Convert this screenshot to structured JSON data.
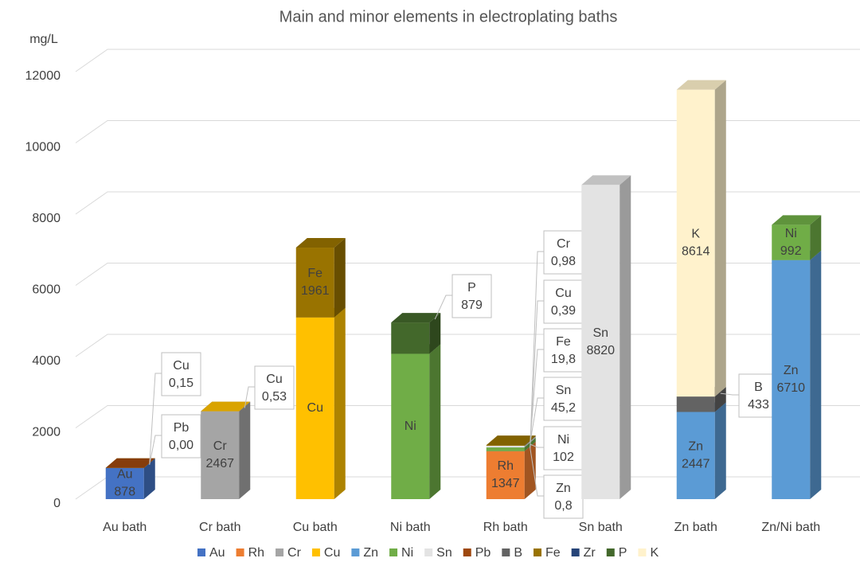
{
  "chart_data": {
    "type": "bar3d_stacked",
    "title": "Main and minor elements in electroplating baths",
    "y_label": "mg/L",
    "categories": [
      "Au bath",
      "Cr bath",
      "Cu bath",
      "Ni bath",
      "Rh bath",
      "Sn bath",
      "Zn bath",
      "Zn/Ni bath"
    ],
    "ylim": [
      0,
      12000
    ],
    "yticks": [
      0,
      2000,
      4000,
      6000,
      8000,
      10000,
      12000
    ],
    "grid": true,
    "legend": "bottom",
    "series": [
      {
        "name": "Au",
        "color": "#4472c4",
        "values": [
          878,
          null,
          null,
          null,
          null,
          null,
          null,
          null
        ],
        "value_labels": [
          "878",
          null,
          null,
          null,
          null,
          null,
          null,
          null
        ]
      },
      {
        "name": "Rh",
        "color": "#ed7d31",
        "values": [
          null,
          null,
          null,
          null,
          1347,
          null,
          null,
          null
        ],
        "value_labels": [
          null,
          null,
          null,
          null,
          "1347",
          null,
          null,
          null
        ]
      },
      {
        "name": "Cr",
        "color": "#a5a5a5",
        "values": [
          null,
          2467,
          null,
          null,
          0.98,
          null,
          null,
          null
        ],
        "value_labels": [
          null,
          "2467",
          null,
          null,
          "0,98",
          null,
          null,
          null
        ]
      },
      {
        "name": "Cu",
        "color": "#ffc000",
        "values": [
          0.15,
          0.53,
          5100,
          null,
          0.39,
          null,
          null,
          null
        ],
        "value_labels": [
          "0,15",
          "0,53",
          null,
          null,
          "0,39",
          null,
          null,
          null
        ]
      },
      {
        "name": "Zn",
        "color": "#5b9bd5",
        "values": [
          null,
          null,
          null,
          null,
          0.8,
          null,
          2447,
          6710
        ],
        "value_labels": [
          null,
          null,
          null,
          null,
          "0,8",
          null,
          "2447",
          "6710"
        ]
      },
      {
        "name": "Ni",
        "color": "#70ad47",
        "values": [
          null,
          null,
          null,
          4080,
          102,
          null,
          null,
          992
        ],
        "value_labels": [
          null,
          null,
          null,
          null,
          "102",
          null,
          null,
          "992"
        ]
      },
      {
        "name": "Sn",
        "color": "#e3e3e3",
        "values": [
          null,
          null,
          null,
          null,
          45.2,
          8820,
          null,
          null
        ],
        "value_labels": [
          null,
          null,
          null,
          null,
          "45,2",
          "8820",
          null,
          null
        ]
      },
      {
        "name": "Pb",
        "color": "#9e480e",
        "values": [
          0,
          null,
          null,
          null,
          null,
          null,
          null,
          null
        ],
        "value_labels": [
          "0,00",
          null,
          null,
          null,
          null,
          null,
          null,
          null
        ]
      },
      {
        "name": "B",
        "color": "#636363",
        "values": [
          null,
          null,
          null,
          null,
          null,
          null,
          433,
          null
        ],
        "value_labels": [
          null,
          null,
          null,
          null,
          null,
          null,
          "433",
          null
        ]
      },
      {
        "name": "Fe",
        "color": "#997300",
        "values": [
          null,
          null,
          1961,
          null,
          19.8,
          null,
          null,
          null
        ],
        "value_labels": [
          null,
          null,
          "1961",
          null,
          "19,8",
          null,
          null,
          null
        ]
      },
      {
        "name": "Zr",
        "color": "#264478",
        "values": [
          null,
          null,
          null,
          null,
          null,
          null,
          null,
          null
        ],
        "value_labels": [
          null,
          null,
          null,
          null,
          null,
          null,
          null,
          null
        ]
      },
      {
        "name": "P",
        "color": "#43682b",
        "values": [
          null,
          null,
          null,
          879,
          null,
          null,
          null,
          null
        ],
        "value_labels": [
          null,
          null,
          null,
          "879",
          null,
          null,
          null,
          null
        ]
      },
      {
        "name": "K",
        "color": "#fff2cc",
        "values": [
          null,
          null,
          null,
          null,
          null,
          null,
          8614,
          null
        ],
        "value_labels": [
          null,
          null,
          null,
          null,
          null,
          null,
          "8614",
          null
        ]
      }
    ]
  }
}
